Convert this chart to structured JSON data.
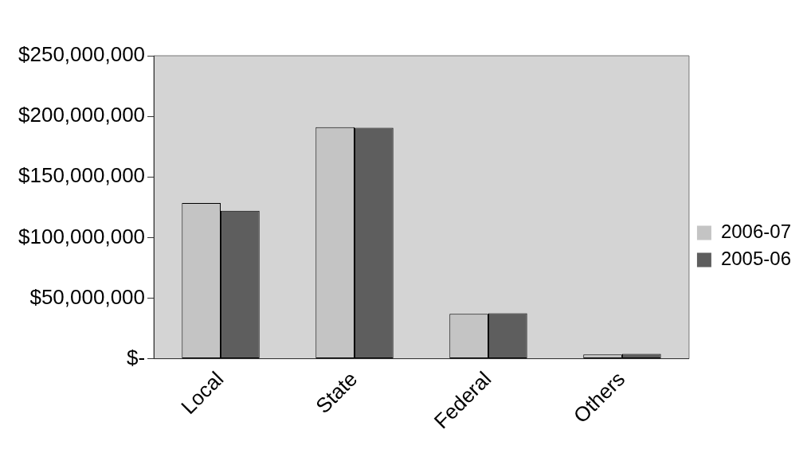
{
  "chart_data": {
    "type": "bar",
    "categories": [
      "Local",
      "State",
      "Federal",
      "Others"
    ],
    "series": [
      {
        "name": "2006-07",
        "color": "#c4c4c4",
        "values": [
          128500000,
          191000000,
          37000000,
          3500000
        ]
      },
      {
        "name": "2005-06",
        "color": "#5e5e5e",
        "values": [
          122000000,
          190500000,
          37500000,
          4000000
        ]
      }
    ],
    "ylim": [
      0,
      250000000
    ],
    "yticks": [
      {
        "value": 0,
        "label": "$-"
      },
      {
        "value": 50000000,
        "label": "$50,000,000"
      },
      {
        "value": 100000000,
        "label": "$100,000,000"
      },
      {
        "value": 150000000,
        "label": "$150,000,000"
      },
      {
        "value": 200000000,
        "label": "$200,000,000"
      },
      {
        "value": 250000000,
        "label": "$250,000,000"
      }
    ],
    "grid": false,
    "legend": "right"
  }
}
